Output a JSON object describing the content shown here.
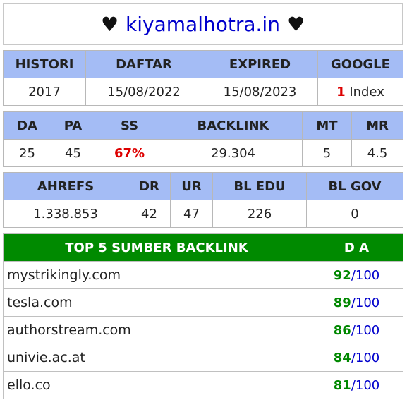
{
  "title": {
    "heart_left": "♥",
    "site": "kiyamalhotra.in",
    "heart_right": "♥"
  },
  "table1": {
    "headers": [
      "HISTORI",
      "DAFTAR",
      "EXPIRED",
      "GOOGLE"
    ],
    "values": {
      "histori": "2017",
      "daftar": "15/08/2022",
      "expired": "15/08/2023",
      "google_count": "1",
      "google_label": "Index"
    }
  },
  "table2": {
    "headers": [
      "DA",
      "PA",
      "SS",
      "BACKLINK",
      "MT",
      "MR"
    ],
    "values": [
      "25",
      "45",
      "67%",
      "29.304",
      "5",
      "4.5"
    ]
  },
  "table3": {
    "headers": [
      "AHREFS",
      "DR",
      "UR",
      "BL EDU",
      "BL GOV"
    ],
    "values": [
      "1.338.853",
      "42",
      "47",
      "226",
      "0"
    ]
  },
  "table4": {
    "header_left": "TOP 5 SUMBER BACKLINK",
    "header_right": "D A",
    "rows": [
      {
        "domain": "mystrikingly.com",
        "da": "92",
        "max": "/100"
      },
      {
        "domain": "tesla.com",
        "da": "89",
        "max": "/100"
      },
      {
        "domain": "authorstream.com",
        "da": "86",
        "max": "/100"
      },
      {
        "domain": "univie.ac.at",
        "da": "84",
        "max": "/100"
      },
      {
        "domain": "ello.co",
        "da": "81",
        "max": "/100"
      }
    ]
  },
  "colors": {
    "header_blue": "#a4bcf5",
    "header_green": "#008a00",
    "link_blue": "#0000cc",
    "red": "#dd0000",
    "green_text": "#008800"
  }
}
